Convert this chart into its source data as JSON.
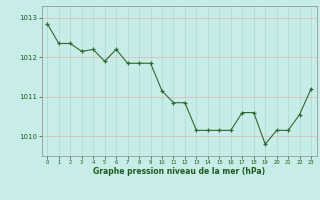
{
  "x": [
    0,
    1,
    2,
    3,
    4,
    5,
    6,
    7,
    8,
    9,
    10,
    11,
    12,
    13,
    14,
    15,
    16,
    17,
    18,
    19,
    20,
    21,
    22,
    23
  ],
  "y": [
    1012.85,
    1012.35,
    1012.35,
    1012.15,
    1012.2,
    1011.9,
    1012.2,
    1011.85,
    1011.85,
    1011.85,
    1011.15,
    1010.85,
    1010.85,
    1010.15,
    1010.15,
    1010.15,
    1010.15,
    1010.6,
    1010.6,
    1009.8,
    1010.15,
    1010.15,
    1010.55,
    1011.2
  ],
  "line_color": "#2d6a2d",
  "marker_color": "#2d6a2d",
  "bg_color": "#c8ede8",
  "grid_color": "#a8d8d0",
  "ylabel_ticks": [
    1010,
    1011,
    1012,
    1013
  ],
  "xlabel_label": "Graphe pression niveau de la mer (hPa)",
  "label_color": "#1a5c1a",
  "ylim": [
    1009.5,
    1013.3
  ],
  "xlim": [
    -0.5,
    23.5
  ]
}
